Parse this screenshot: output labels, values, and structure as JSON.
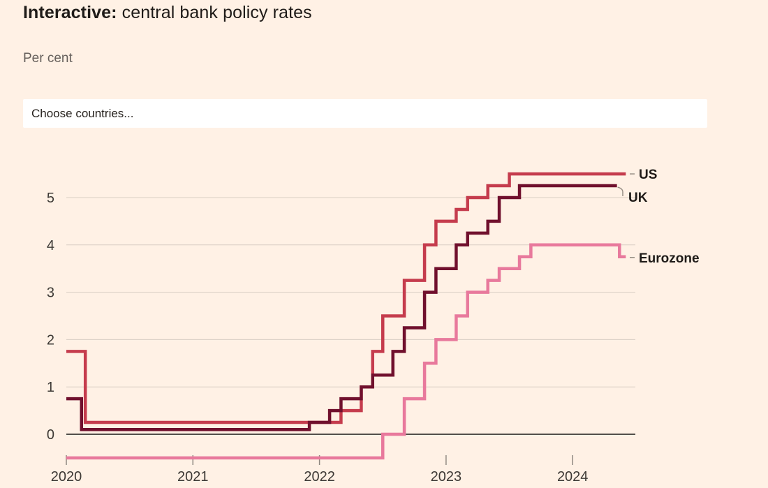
{
  "title": {
    "prefix": "Interactive:",
    "rest": " central bank policy rates"
  },
  "subtitle": "Per cent",
  "country_picker": {
    "placeholder": "Choose countries..."
  },
  "colors": {
    "background": "#fff1e5",
    "title_text": "#1f1b18",
    "muted_text": "#66605c",
    "axis_label": "#3d3935",
    "grid": "#d8cec3",
    "zero_line": "#1a1817",
    "tick_mark": "#8f8880",
    "leader": "#968d84",
    "series_us": "#c53c4d",
    "series_uk": "#70102d",
    "series_eurozone": "#e8799c"
  },
  "chart_data": {
    "type": "line",
    "subtype": "step",
    "title": "Interactive: central bank policy rates",
    "ylabel": "Per cent",
    "xlabel": "",
    "x_ticks": [
      2020,
      2021,
      2022,
      2023,
      2024
    ],
    "y_ticks": [
      0,
      1,
      2,
      3,
      4,
      5
    ],
    "xlim": [
      2020,
      2024.5
    ],
    "ylim": [
      -0.5,
      5.5
    ],
    "grid": "horizontal",
    "legend_position": "end-of-line-labels",
    "series": [
      {
        "name": "US",
        "color_key": "series_us",
        "leader": "dash",
        "end_x": 2024.42,
        "points": [
          [
            2020.0,
            1.75
          ],
          [
            2020.15,
            0.25
          ],
          [
            2022.17,
            0.5
          ],
          [
            2022.33,
            1.0
          ],
          [
            2022.42,
            1.75
          ],
          [
            2022.5,
            2.5
          ],
          [
            2022.67,
            3.25
          ],
          [
            2022.83,
            4.0
          ],
          [
            2022.92,
            4.5
          ],
          [
            2023.08,
            4.75
          ],
          [
            2023.17,
            5.0
          ],
          [
            2023.33,
            5.25
          ],
          [
            2023.5,
            5.5
          ]
        ]
      },
      {
        "name": "UK",
        "color_key": "series_uk",
        "leader": "elbow",
        "end_x": 2024.35,
        "points": [
          [
            2020.0,
            0.75
          ],
          [
            2020.12,
            0.1
          ],
          [
            2021.92,
            0.25
          ],
          [
            2022.08,
            0.5
          ],
          [
            2022.17,
            0.75
          ],
          [
            2022.33,
            1.0
          ],
          [
            2022.42,
            1.25
          ],
          [
            2022.58,
            1.75
          ],
          [
            2022.67,
            2.25
          ],
          [
            2022.83,
            3.0
          ],
          [
            2022.92,
            3.5
          ],
          [
            2023.08,
            4.0
          ],
          [
            2023.17,
            4.25
          ],
          [
            2023.33,
            4.5
          ],
          [
            2023.42,
            5.0
          ],
          [
            2023.58,
            5.25
          ]
        ]
      },
      {
        "name": "Eurozone",
        "color_key": "series_eurozone",
        "leader": "dash",
        "end_x": 2024.42,
        "points": [
          [
            2020.0,
            -0.5
          ],
          [
            2022.5,
            0.0
          ],
          [
            2022.67,
            0.75
          ],
          [
            2022.83,
            1.5
          ],
          [
            2022.92,
            2.0
          ],
          [
            2023.08,
            2.5
          ],
          [
            2023.17,
            3.0
          ],
          [
            2023.33,
            3.25
          ],
          [
            2023.42,
            3.5
          ],
          [
            2023.58,
            3.75
          ],
          [
            2023.67,
            4.0
          ],
          [
            2024.37,
            3.75
          ]
        ]
      }
    ]
  }
}
